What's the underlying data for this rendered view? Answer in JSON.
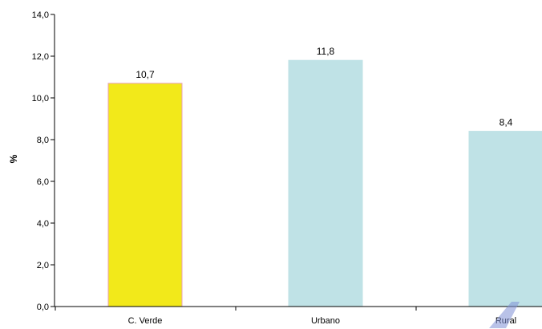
{
  "chart_data": {
    "type": "bar",
    "categories": [
      "C. Verde",
      "Urbano",
      "Rural"
    ],
    "values": [
      10.7,
      11.8,
      8.4
    ],
    "value_labels": [
      "10,7",
      "11,8",
      "8,4"
    ],
    "title": "",
    "xlabel": "",
    "ylabel": "%",
    "ylim": [
      0,
      14
    ],
    "yticks": [
      0,
      2,
      4,
      6,
      8,
      10,
      12,
      14
    ],
    "ytick_labels": [
      "0,0",
      "2,0",
      "4,0",
      "6,0",
      "8,0",
      "10,0",
      "12,0",
      "14,0"
    ],
    "grid": false,
    "legend": "none",
    "bar_colors": [
      "#f2e91a",
      "#bfe2e6",
      "#bfe2e6"
    ],
    "bar_edge_colors": [
      "#e8a0b8",
      "#bfe2e6",
      "#bfe2e6"
    ],
    "axis_color": "#000000"
  }
}
